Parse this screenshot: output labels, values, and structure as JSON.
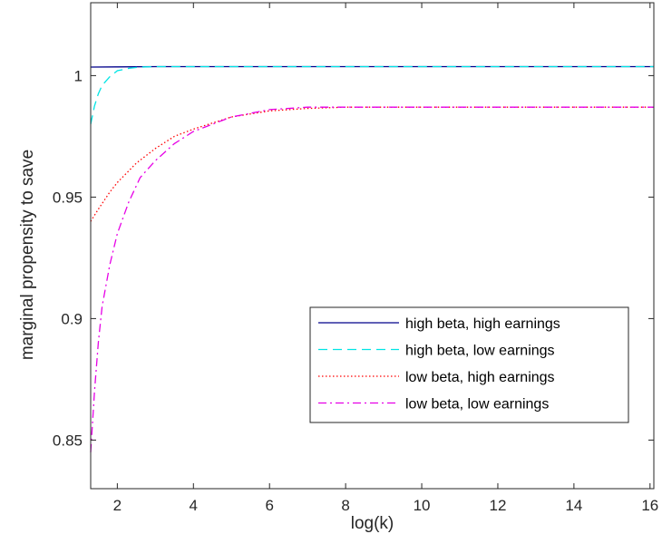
{
  "chart_data": {
    "type": "line",
    "title": "",
    "xlabel": "log(k)",
    "ylabel": "marginal propensity to save",
    "xlim": [
      1.3,
      16.1
    ],
    "ylim": [
      0.83,
      1.03
    ],
    "xticks": [
      2,
      4,
      6,
      8,
      10,
      12,
      14,
      16
    ],
    "yticks": [
      0.85,
      0.9,
      0.95,
      1
    ],
    "xtick_labels": [
      "2",
      "4",
      "6",
      "8",
      "10",
      "12",
      "14",
      "16"
    ],
    "ytick_labels": [
      "0.85",
      "0.9",
      "0.95",
      "1"
    ],
    "grid": false,
    "legend_position": "bottom-right",
    "series": [
      {
        "name": "high beta, high earnings",
        "color": "#00008b",
        "dash": "solid",
        "x": [
          1.3,
          2,
          3,
          4,
          6,
          8,
          10,
          12,
          14,
          16.1
        ],
        "y": [
          1.0035,
          1.0036,
          1.0037,
          1.0037,
          1.0037,
          1.0037,
          1.0037,
          1.0037,
          1.0037,
          1.0037
        ]
      },
      {
        "name": "high beta, low earnings",
        "color": "#00e5e5",
        "dash": "dashed",
        "x": [
          1.3,
          1.4,
          1.5,
          1.6,
          1.8,
          2.0,
          2.3,
          2.6,
          3,
          4,
          6,
          8,
          10,
          12,
          14,
          16.1
        ],
        "y": [
          0.98,
          0.9875,
          0.9925,
          0.996,
          0.9995,
          1.002,
          1.003,
          1.0035,
          1.0037,
          1.0037,
          1.0037,
          1.0037,
          1.0037,
          1.0037,
          1.0037,
          1.0037
        ]
      },
      {
        "name": "low beta, high earnings",
        "color": "#ff0000",
        "dash": "dotted",
        "x": [
          1.3,
          1.5,
          1.8,
          2.0,
          2.5,
          3,
          3.5,
          4,
          5,
          6,
          7,
          8,
          10,
          12,
          14,
          16.1
        ],
        "y": [
          0.94,
          0.945,
          0.952,
          0.956,
          0.964,
          0.97,
          0.975,
          0.978,
          0.983,
          0.9855,
          0.9865,
          0.987,
          0.987,
          0.987,
          0.987,
          0.987
        ]
      },
      {
        "name": "low beta, low earnings",
        "color": "#e600e6",
        "dash": "dashdot",
        "x": [
          1.3,
          1.4,
          1.5,
          1.6,
          1.8,
          2.0,
          2.3,
          2.6,
          3,
          3.5,
          4,
          5,
          6,
          7,
          8,
          10,
          12,
          14,
          16.1
        ],
        "y": [
          0.845,
          0.87,
          0.89,
          0.905,
          0.922,
          0.935,
          0.948,
          0.958,
          0.965,
          0.972,
          0.977,
          0.983,
          0.986,
          0.987,
          0.987,
          0.987,
          0.987,
          0.987,
          0.987
        ]
      }
    ]
  }
}
